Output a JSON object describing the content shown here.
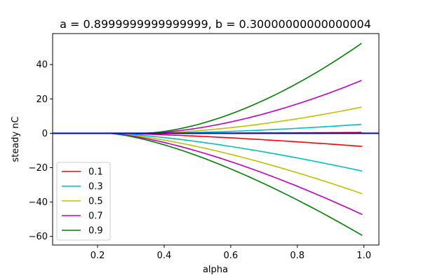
{
  "chart_data": {
    "type": "line",
    "title": "a = 0.8999999999999999, b = 0.30000000000000004",
    "xlabel": "alpha",
    "ylabel": "steady nC",
    "xlim": [
      0.065,
      1.045
    ],
    "ylim": [
      -65,
      58
    ],
    "xticks": [
      0.2,
      0.4,
      0.6,
      0.8,
      1.0
    ],
    "xtick_labels": [
      "0.2",
      "0.4",
      "0.6",
      "0.8",
      "1.0"
    ],
    "yticks": [
      -60,
      -40,
      -20,
      0,
      20,
      40
    ],
    "ytick_labels": [
      "−60",
      "−40",
      "−20",
      "0",
      "20",
      "40"
    ],
    "grid": false,
    "legend_position": "lower left",
    "branch_start_alpha": 0.333,
    "series": [
      {
        "name": "0.1",
        "color": "#ff0000",
        "upper_end": 0.5,
        "lower_end": -7.7
      },
      {
        "name": "0.3",
        "color": "#00bfbf",
        "upper_end": 5.3,
        "lower_end": -22.2
      },
      {
        "name": "0.5",
        "color": "#bfbf00",
        "upper_end": 15.5,
        "lower_end": -35.5
      },
      {
        "name": "0.7",
        "color": "#bf00bf",
        "upper_end": 31.3,
        "lower_end": -47.7
      },
      {
        "name": "0.9",
        "color": "#008000",
        "upper_end": 53.3,
        "lower_end": -60.0
      }
    ],
    "zero_line": {
      "color": "#0000ff",
      "y": 0
    }
  }
}
